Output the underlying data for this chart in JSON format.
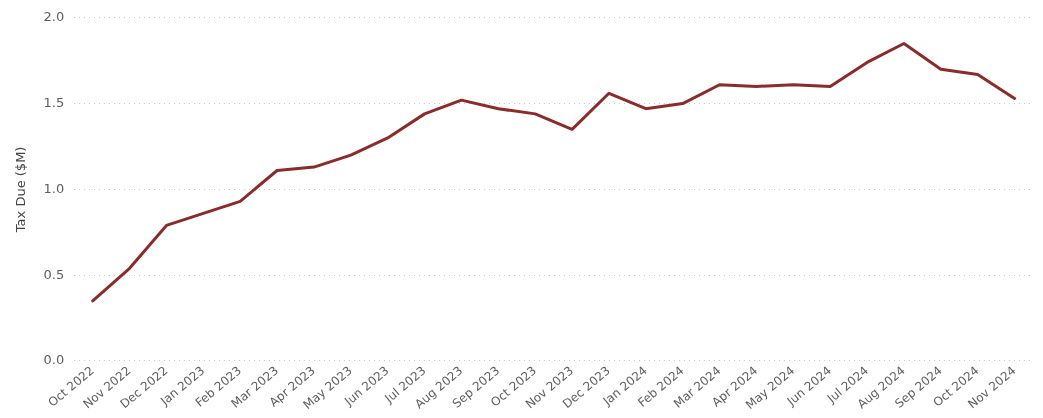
{
  "chart_data": {
    "type": "line",
    "ylabel": "Tax Due ($M)",
    "categories": [
      "Oct 2022",
      "Nov 2022",
      "Dec 2022",
      "Jan 2023",
      "Feb 2023",
      "Mar 2023",
      "Apr 2023",
      "May 2023",
      "Jun 2023",
      "Jul 2023",
      "Aug 2023",
      "Sep 2023",
      "Oct 2023",
      "Nov 2023",
      "Dec 2023",
      "Jan 2024",
      "Feb 2024",
      "Mar 2024",
      "Apr 2024",
      "May 2024",
      "Jun 2024",
      "Jul 2024",
      "Aug 2024",
      "Sep 2024",
      "Oct 2024",
      "Nov 2024"
    ],
    "series": [
      {
        "color": "#8b2b2b",
        "values": [
          0.35,
          0.54,
          0.79,
          0.86,
          0.93,
          1.11,
          1.13,
          1.2,
          1.3,
          1.44,
          1.52,
          1.47,
          1.44,
          1.35,
          1.56,
          1.47,
          1.5,
          1.61,
          1.6,
          1.61,
          1.6,
          1.74,
          1.85,
          1.7,
          1.67,
          1.53
        ]
      }
    ],
    "ylim": [
      0,
      2
    ],
    "yticks": [
      {
        "value": 0,
        "label": "0.0"
      },
      {
        "value": 0.5,
        "label": "0.5"
      },
      {
        "value": 1,
        "label": "1.0"
      },
      {
        "value": 1.5,
        "label": "1.5"
      },
      {
        "value": 2,
        "label": "2.0"
      }
    ],
    "grid": "y",
    "marker": "none",
    "legend": false
  }
}
